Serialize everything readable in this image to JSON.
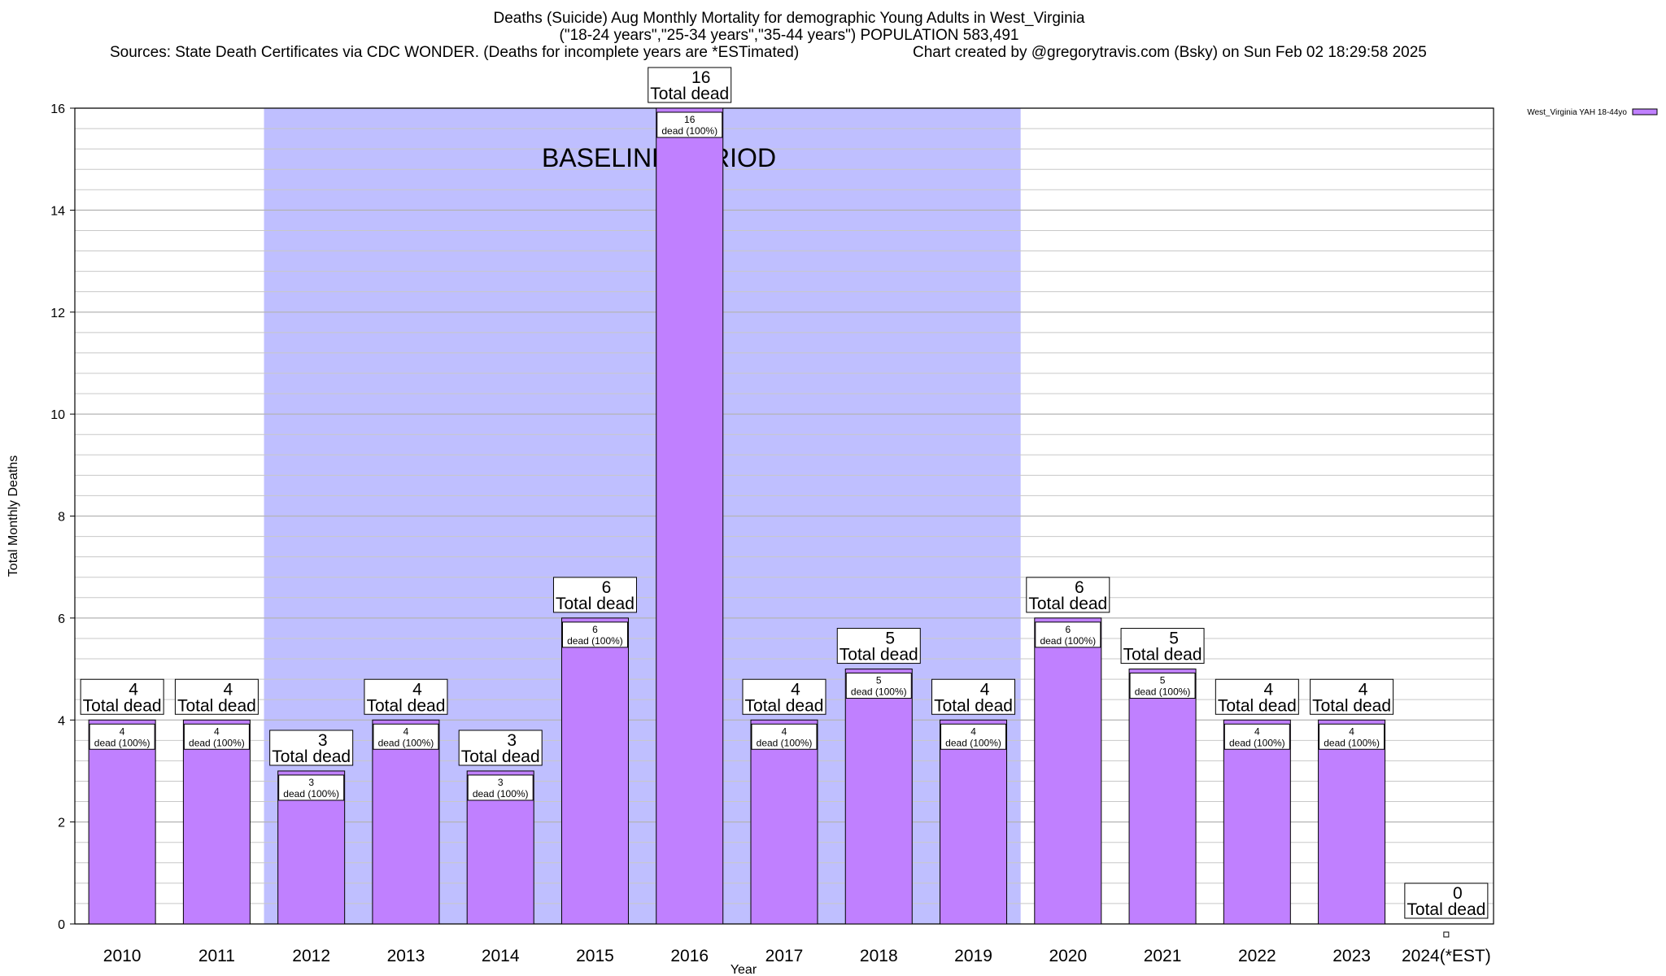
{
  "header": {
    "title_line1": "Deaths (Suicide) Aug Monthly Mortality for demographic Young Adults in West_Virginia",
    "title_line2": "(\"18-24 years\",\"25-34 years\",\"35-44 years\") POPULATION 583,491",
    "sources": "Sources: State Death Certificates via CDC WONDER. (Deaths for incomplete years are *ESTimated)",
    "credit": "Chart created by @gregorytravis.com (Bsky) on Sun Feb 02 18:29:58 2025"
  },
  "chart_data": {
    "type": "bar",
    "xlabel": "Year",
    "ylabel": "Total Monthly Deaths",
    "ylim": [
      0,
      16
    ],
    "y_ticks": [
      0,
      2,
      4,
      6,
      8,
      10,
      12,
      14,
      16
    ],
    "grid": true,
    "legend_position": "top-right",
    "categories": [
      "2010",
      "2011",
      "2012",
      "2013",
      "2014",
      "2015",
      "2016",
      "2017",
      "2018",
      "2019",
      "2020",
      "2021",
      "2022",
      "2023",
      "2024(*EST)"
    ],
    "series": [
      {
        "name": "West_Virginia YAH 18-44yo",
        "color": "#c080ff",
        "values": [
          4,
          4,
          3,
          4,
          3,
          6,
          16,
          4,
          5,
          4,
          6,
          5,
          4,
          4,
          0
        ],
        "segment_labels": [
          "dead (100%)",
          "dead (100%)",
          "dead (100%)",
          "dead (100%)",
          "dead (100%)",
          "dead (100%)",
          "dead (100%)",
          "dead (100%)",
          "dead (100%)",
          "dead (100%)",
          "dead (100%)",
          "dead (100%)",
          "dead (100%)",
          "dead (100%)",
          ""
        ]
      }
    ],
    "total_label_suffix": "Total dead",
    "baseline_period": {
      "label": "BASELINE PERIOD",
      "start": "2012",
      "end": "2019",
      "color": "#bfbfff"
    }
  }
}
